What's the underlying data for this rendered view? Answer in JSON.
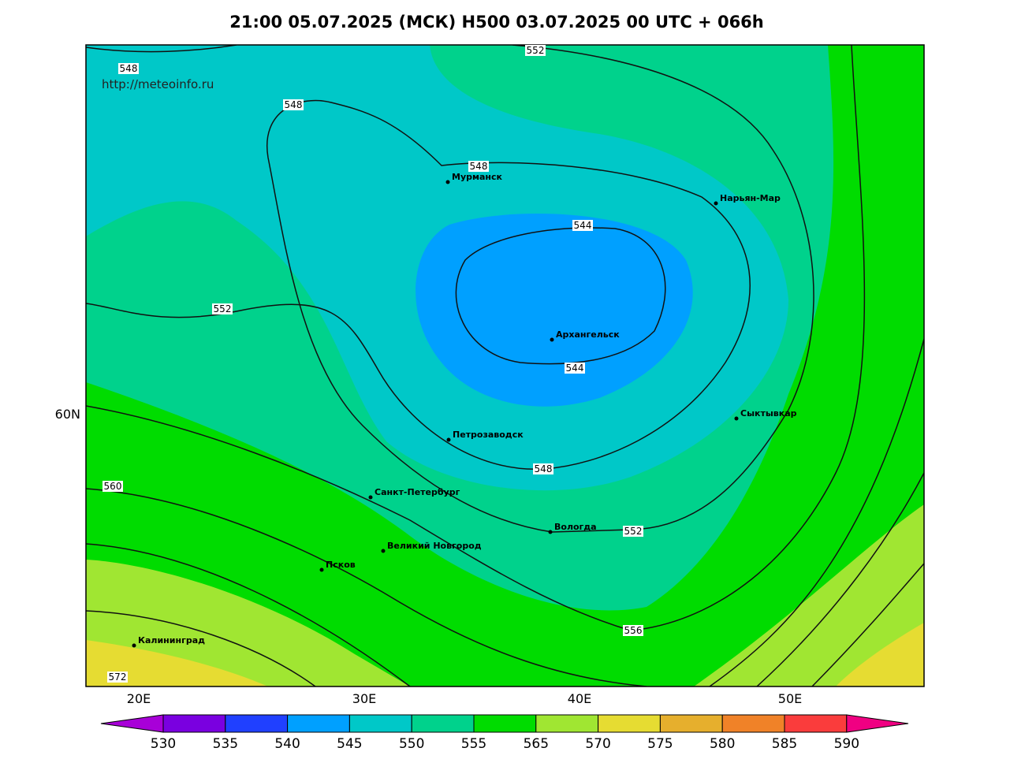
{
  "header": {
    "title": "21:00 05.07.2025 (МСК) H500  03.07.2025 00 UTC + 066h",
    "source": "http://meteoinfo.ru"
  },
  "cities": [
    "Мурманск",
    "Нарьян-Мар",
    "Архангельск",
    "Сыктывкар",
    "Петрозаводск",
    "Санкт-Петербург",
    "Вологда",
    "Великий Новгород",
    "Псков",
    "Калининград"
  ],
  "contour_labels": [
    548,
    552,
    548,
    548,
    544,
    552,
    544,
    548,
    560,
    552,
    556,
    572
  ],
  "axis_labels": {
    "lon": [
      "20E",
      "30E",
      "40E",
      "50E"
    ],
    "lat": [
      "60N"
    ]
  },
  "colorbar": {
    "levels": [
      530,
      535,
      540,
      545,
      550,
      555,
      565,
      570,
      575,
      580,
      585,
      590
    ],
    "colors": [
      "#a800d8",
      "#7a00e0",
      "#2040ff",
      "#00a0ff",
      "#00c8c8",
      "#00d28c",
      "#00dc00",
      "#a0e632",
      "#e6dc32",
      "#e6af2d",
      "#f08228",
      "#fa3c3c",
      "#f00082"
    ]
  }
}
